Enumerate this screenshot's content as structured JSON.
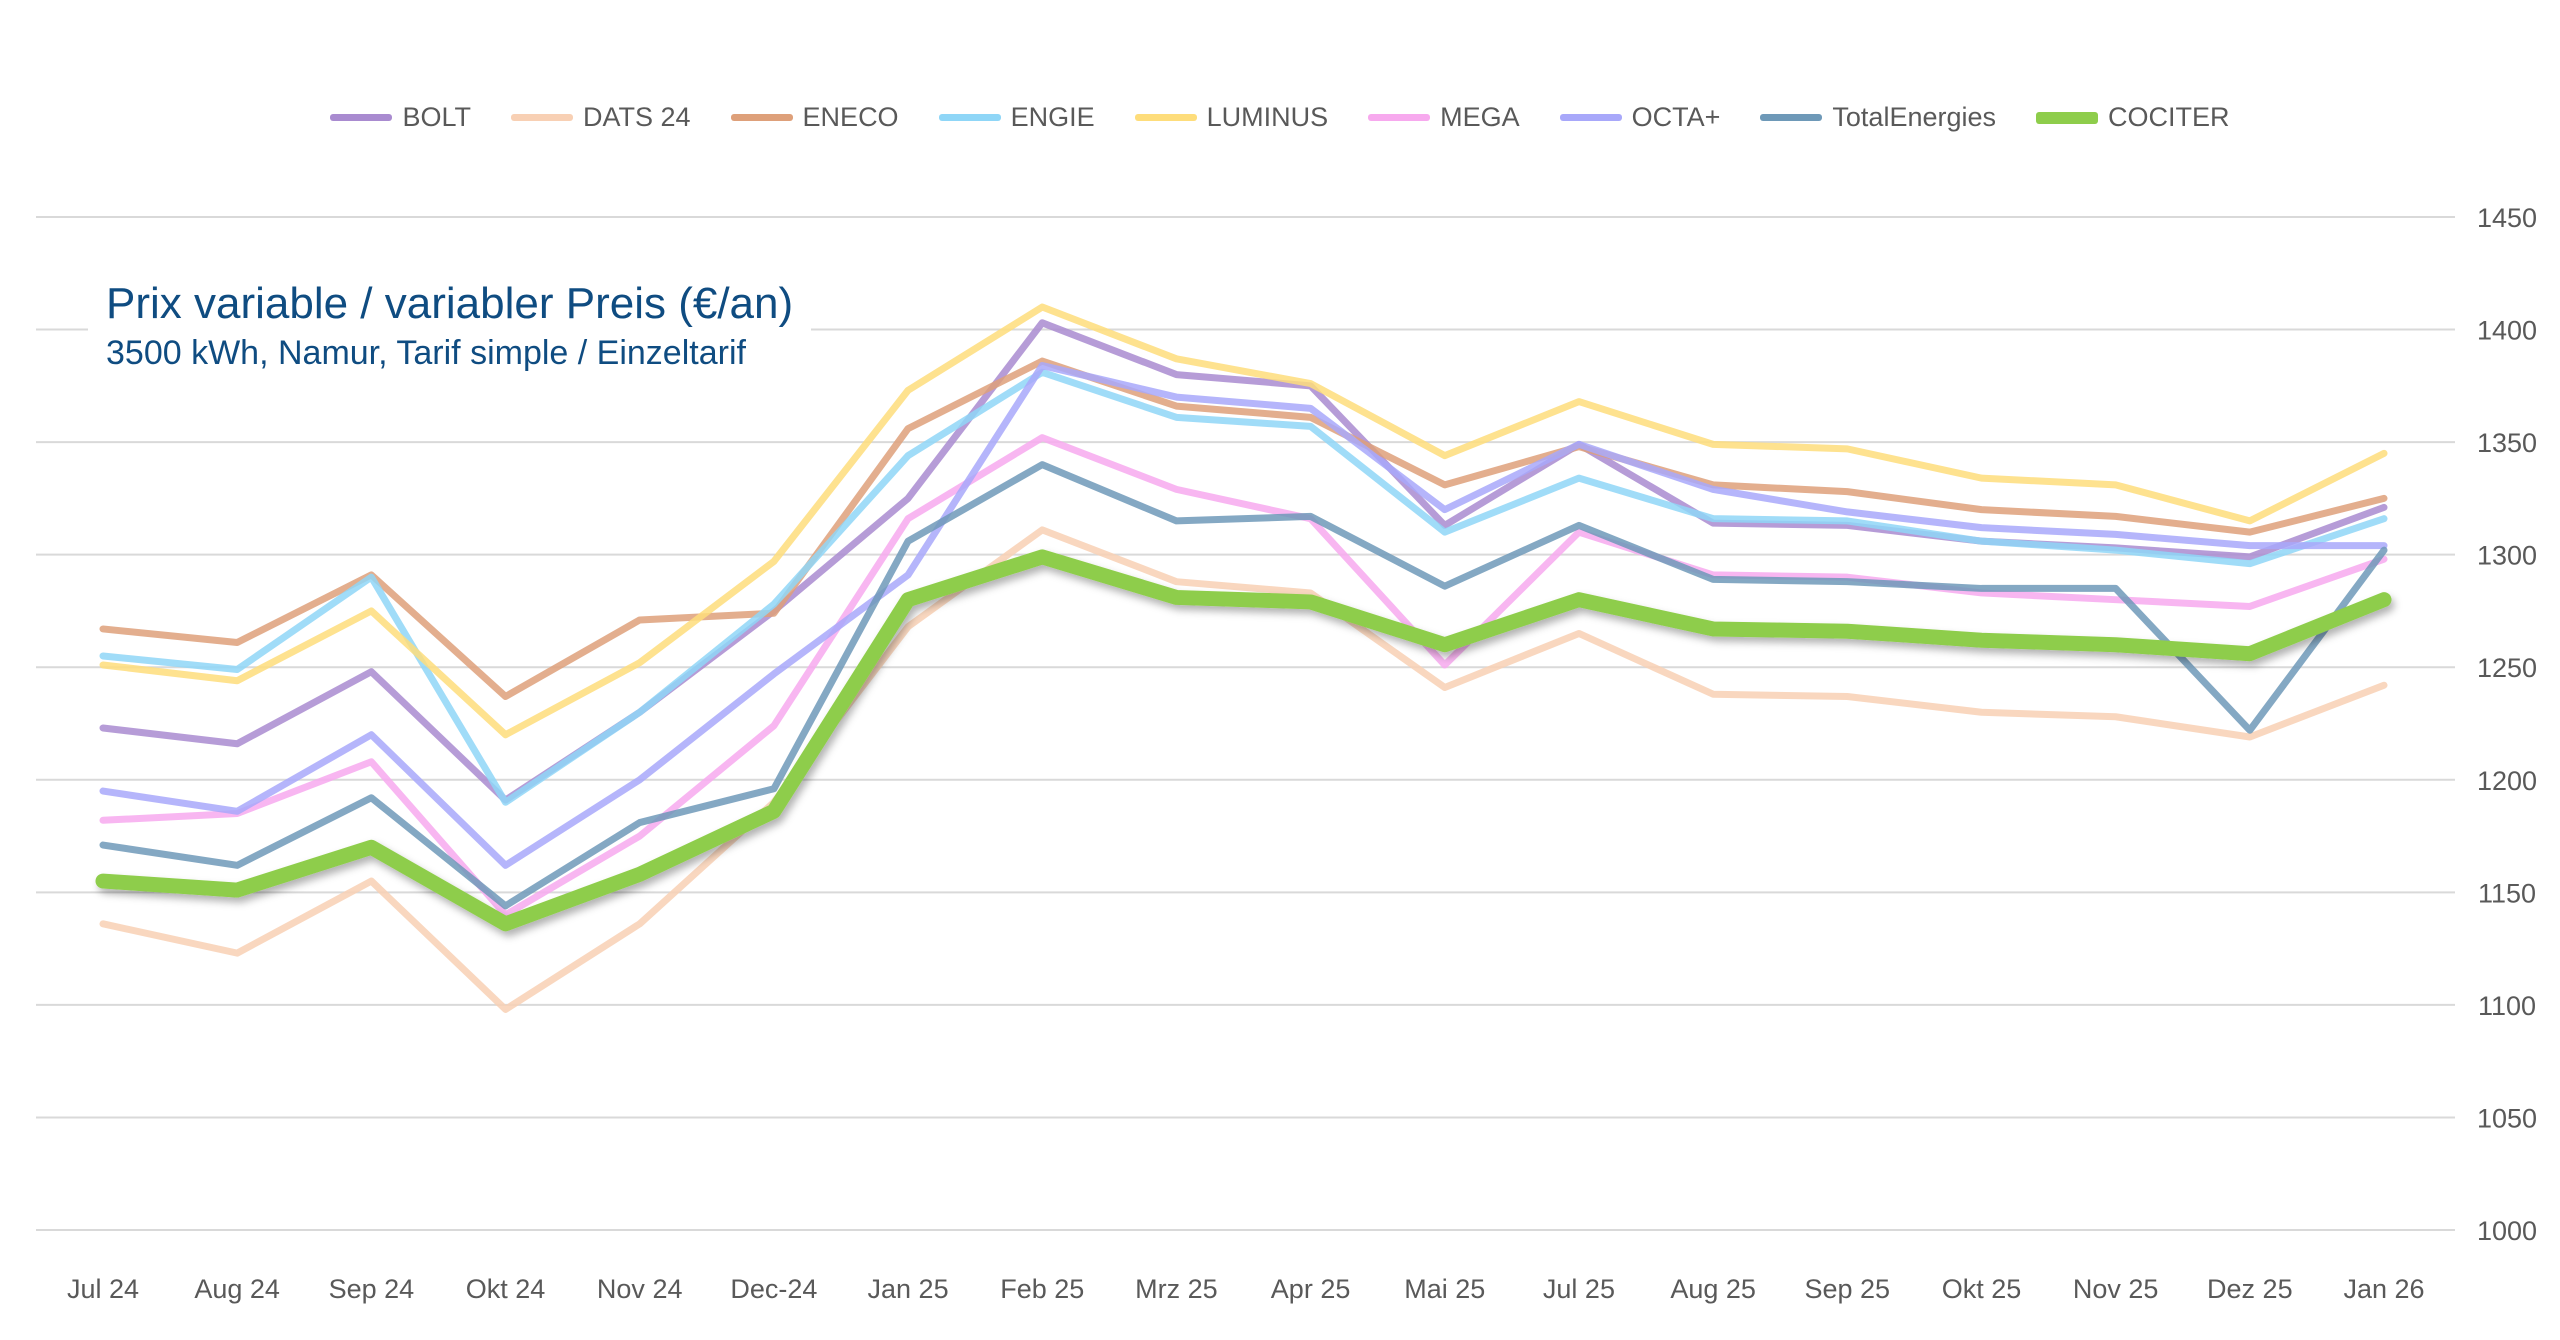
{
  "chart_data": {
    "type": "line",
    "title": "Prix variable / variabler Preis (€/an)",
    "subtitle": "3500 kWh, Namur,  Tarif simple / Einzeltarif",
    "categories": [
      "Jul 24",
      "Aug 24",
      "Sep 24",
      "Okt 24",
      "Nov 24",
      "Dec-24",
      "Jan 25",
      "Feb 25",
      "Mrz 25",
      "Apr 25",
      "Mai 25",
      "Jul 25",
      "Aug 25",
      "Sep 25",
      "Okt 25",
      "Nov 25",
      "Dez 25",
      "Jan 26"
    ],
    "ylim": [
      1000,
      1450
    ],
    "yticks": [
      1000,
      1050,
      1100,
      1150,
      1200,
      1250,
      1300,
      1350,
      1400,
      1450
    ],
    "y_axis_position": "right",
    "grid": true,
    "legend_position": "top",
    "series": [
      {
        "name": "BOLT",
        "color": "#a98bd0",
        "values": [
          1223,
          1216,
          1248,
          1191,
          1230,
          1275,
          1325,
          1403,
          1380,
          1375,
          1313,
          1349,
          1314,
          1313,
          1306,
          1303,
          1299,
          1321
        ]
      },
      {
        "name": "DATS 24",
        "color": "#f8d0b4",
        "values": [
          1136,
          1123,
          1155,
          1098,
          1136,
          1190,
          1268,
          1311,
          1288,
          1283,
          1241,
          1265,
          1238,
          1237,
          1230,
          1228,
          1219,
          1242
        ]
      },
      {
        "name": "ENECO",
        "color": "#dea07a",
        "values": [
          1267,
          1261,
          1291,
          1237,
          1271,
          1274,
          1356,
          1386,
          1366,
          1361,
          1331,
          1348,
          1331,
          1328,
          1320,
          1317,
          1310,
          1325
        ]
      },
      {
        "name": "ENGIE",
        "color": "#8fd6f7",
        "values": [
          1255,
          1249,
          1290,
          1190,
          1230,
          1278,
          1344,
          1381,
          1361,
          1357,
          1310,
          1334,
          1316,
          1315,
          1306,
          1302,
          1296,
          1316
        ]
      },
      {
        "name": "LUMINUS",
        "color": "#fedd7b",
        "values": [
          1251,
          1244,
          1275,
          1220,
          1252,
          1297,
          1373,
          1410,
          1387,
          1376,
          1344,
          1368,
          1349,
          1347,
          1334,
          1331,
          1315,
          1345
        ]
      },
      {
        "name": "MEGA",
        "color": "#f7a9ee",
        "values": [
          1182,
          1185,
          1208,
          1140,
          1175,
          1224,
          1316,
          1352,
          1329,
          1316,
          1251,
          1310,
          1291,
          1290,
          1283,
          1280,
          1277,
          1298
        ]
      },
      {
        "name": "OCTA+",
        "color": "#a8a8fa",
        "values": [
          1195,
          1186,
          1220,
          1162,
          1200,
          1247,
          1291,
          1384,
          1370,
          1365,
          1320,
          1349,
          1329,
          1319,
          1312,
          1309,
          1304,
          1304
        ]
      },
      {
        "name": "TotalEnergies",
        "color": "#6e99b8",
        "values": [
          1171,
          1162,
          1192,
          1144,
          1181,
          1196,
          1306,
          1340,
          1315,
          1317,
          1286,
          1313,
          1289,
          1288,
          1285,
          1285,
          1222,
          1302
        ]
      },
      {
        "name": "COCITER",
        "color": "#8ecd4b",
        "values": [
          1155,
          1151,
          1170,
          1136,
          1158,
          1186,
          1280,
          1299,
          1281,
          1279,
          1260,
          1280,
          1267,
          1266,
          1262,
          1260,
          1256,
          1280
        ]
      }
    ]
  }
}
